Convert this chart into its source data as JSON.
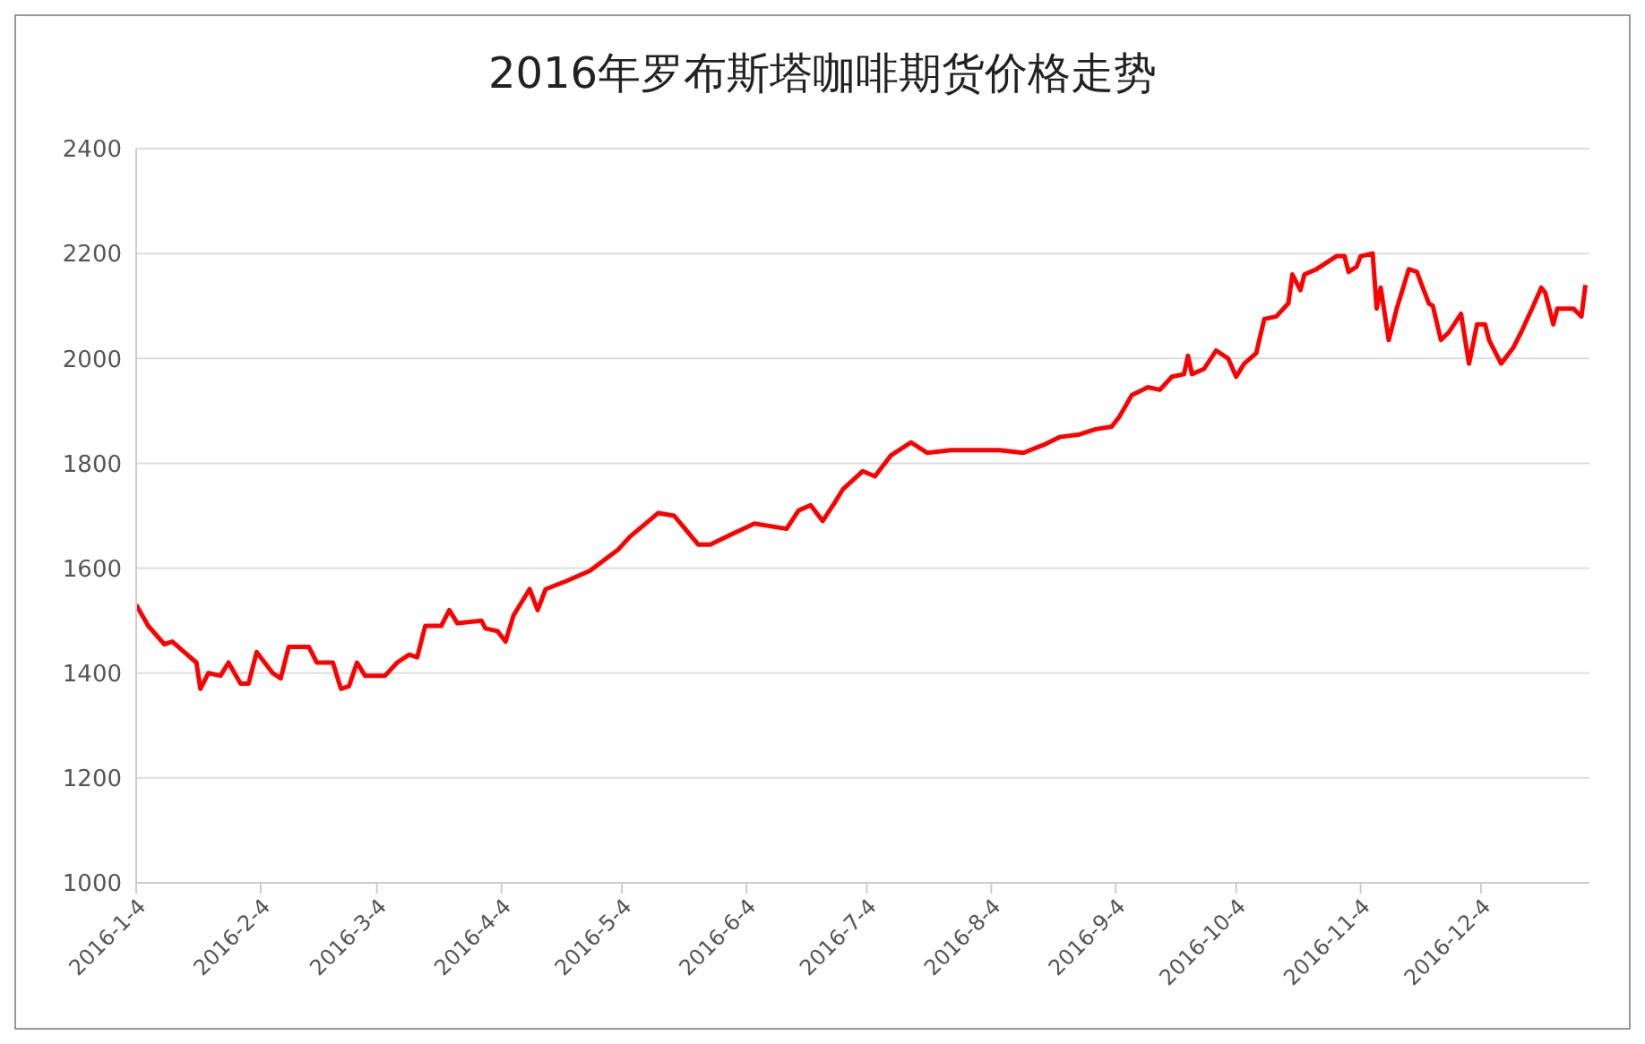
{
  "chart_data": {
    "type": "line",
    "title": "2016年罗布斯塔咖啡期货价格走势",
    "x": [
      "2016-01-04",
      "2016-01-07",
      "2016-01-11",
      "2016-01-13",
      "2016-01-16",
      "2016-01-19",
      "2016-01-20",
      "2016-01-22",
      "2016-01-25",
      "2016-01-27",
      "2016-01-30",
      "2016-02-01",
      "2016-02-03",
      "2016-02-07",
      "2016-02-09",
      "2016-02-11",
      "2016-02-16",
      "2016-02-18",
      "2016-02-22",
      "2016-02-24",
      "2016-02-26",
      "2016-02-28",
      "2016-03-01",
      "2016-03-06",
      "2016-03-09",
      "2016-03-12",
      "2016-03-14",
      "2016-03-16",
      "2016-03-20",
      "2016-03-22",
      "2016-03-24",
      "2016-03-30",
      "2016-03-31",
      "2016-04-03",
      "2016-04-05",
      "2016-04-07",
      "2016-04-11",
      "2016-04-13",
      "2016-04-15",
      "2016-04-20",
      "2016-04-26",
      "2016-05-03",
      "2016-05-06",
      "2016-05-13",
      "2016-05-17",
      "2016-05-23",
      "2016-05-26",
      "2016-05-30",
      "2016-06-06",
      "2016-06-14",
      "2016-06-17",
      "2016-06-20",
      "2016-06-23",
      "2016-06-26",
      "2016-06-28",
      "2016-07-03",
      "2016-07-06",
      "2016-07-10",
      "2016-07-15",
      "2016-07-19",
      "2016-07-25",
      "2016-08-01",
      "2016-08-06",
      "2016-08-12",
      "2016-08-17",
      "2016-08-21",
      "2016-08-26",
      "2016-08-30",
      "2016-09-03",
      "2016-09-05",
      "2016-09-08",
      "2016-09-12",
      "2016-09-15",
      "2016-09-18",
      "2016-09-21",
      "2016-09-22",
      "2016-09-23",
      "2016-09-26",
      "2016-09-29",
      "2016-10-02",
      "2016-10-04",
      "2016-10-06",
      "2016-10-09",
      "2016-10-11",
      "2016-10-14",
      "2016-10-17",
      "2016-10-18",
      "2016-10-20",
      "2016-10-21",
      "2016-10-24",
      "2016-10-26",
      "2016-10-29",
      "2016-10-31",
      "2016-11-01",
      "2016-11-03",
      "2016-11-04",
      "2016-11-07",
      "2016-11-08",
      "2016-11-09",
      "2016-11-11",
      "2016-11-13",
      "2016-11-16",
      "2016-11-18",
      "2016-11-21",
      "2016-11-22",
      "2016-11-24",
      "2016-11-26",
      "2016-11-29",
      "2016-12-01",
      "2016-12-03",
      "2016-12-05",
      "2016-12-06",
      "2016-12-09",
      "2016-12-12",
      "2016-12-14",
      "2016-12-17",
      "2016-12-19",
      "2016-12-20",
      "2016-12-22",
      "2016-12-23",
      "2016-12-27",
      "2016-12-29",
      "2016-12-30"
    ],
    "series": [
      {
        "color": "#ff0000",
        "values": [
          1530,
          1490,
          1455,
          1460,
          1440,
          1420,
          1370,
          1400,
          1395,
          1420,
          1380,
          1380,
          1440,
          1400,
          1390,
          1450,
          1450,
          1420,
          1420,
          1370,
          1375,
          1420,
          1395,
          1395,
          1420,
          1435,
          1430,
          1490,
          1490,
          1520,
          1495,
          1500,
          1485,
          1480,
          1460,
          1510,
          1560,
          1520,
          1560,
          1575,
          1595,
          1635,
          1660,
          1705,
          1700,
          1645,
          1645,
          1660,
          1685,
          1675,
          1710,
          1720,
          1690,
          1725,
          1750,
          1785,
          1775,
          1815,
          1840,
          1820,
          1825,
          1825,
          1825,
          1820,
          1835,
          1850,
          1855,
          1865,
          1870,
          1890,
          1930,
          1945,
          1940,
          1965,
          1970,
          2005,
          1970,
          1980,
          2015,
          2000,
          1965,
          1990,
          2010,
          2075,
          2080,
          2105,
          2160,
          2130,
          2160,
          2170,
          2180,
          2195,
          2195,
          2165,
          2175,
          2195,
          2200,
          2095,
          2135,
          2035,
          2095,
          2170,
          2165,
          2105,
          2100,
          2035,
          2050,
          2085,
          1990,
          2065,
          2065,
          2035,
          1990,
          2020,
          2050,
          2100,
          2135,
          2125,
          2065,
          2095,
          2095,
          2080,
          2140
        ]
      }
    ],
    "xlim": [
      "2016-01-04",
      "2016-12-31"
    ],
    "xticks": [
      {
        "value": "2016-01-04",
        "label": "2016-1-4"
      },
      {
        "value": "2016-02-04",
        "label": "2016-2-4"
      },
      {
        "value": "2016-03-04",
        "label": "2016-3-4"
      },
      {
        "value": "2016-04-04",
        "label": "2016-4-4"
      },
      {
        "value": "2016-05-04",
        "label": "2016-5-4"
      },
      {
        "value": "2016-06-04",
        "label": "2016-6-4"
      },
      {
        "value": "2016-07-04",
        "label": "2016-7-4"
      },
      {
        "value": "2016-08-04",
        "label": "2016-8-4"
      },
      {
        "value": "2016-09-04",
        "label": "2016-9-4"
      },
      {
        "value": "2016-10-04",
        "label": "2016-10-4"
      },
      {
        "value": "2016-11-04",
        "label": "2016-11-4"
      },
      {
        "value": "2016-12-04",
        "label": "2016-12-4"
      }
    ],
    "ylim": [
      1000,
      2400
    ],
    "yticks": [
      1000,
      1200,
      1400,
      1600,
      1800,
      2000,
      2200,
      2400
    ],
    "grid": "y",
    "legend": false,
    "marker": "none",
    "line_style": "solid"
  }
}
